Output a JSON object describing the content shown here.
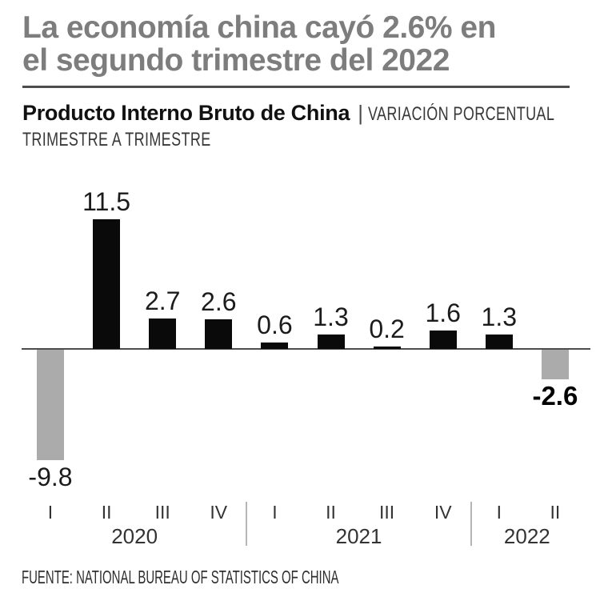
{
  "header": {
    "title_lines": [
      "La economía china cayó 2.6% en",
      "el segundo trimestre del 2022"
    ]
  },
  "subtitle": {
    "bold": "Producto Interno Bruto de China",
    "separator": "|",
    "tagline_line1": "VARIACIÓN PORCENTUAL",
    "tagline_line2": "TRIMESTRE A TRIMESTRE"
  },
  "chart_data": {
    "type": "bar",
    "title": "Producto Interno Bruto de China",
    "subtitle": "Variación porcentual trimestre a trimestre",
    "categories": [
      "I",
      "II",
      "III",
      "IV",
      "I",
      "II",
      "III",
      "IV",
      "I",
      "II"
    ],
    "year_groups": [
      {
        "label": "2020",
        "span": [
          0,
          3
        ]
      },
      {
        "label": "2021",
        "span": [
          4,
          7
        ]
      },
      {
        "label": "2022",
        "span": [
          8,
          9
        ]
      }
    ],
    "values": [
      -9.8,
      11.5,
      2.7,
      2.6,
      0.6,
      1.3,
      0.2,
      1.6,
      1.3,
      -2.6
    ],
    "highlight_index": 9,
    "colors": {
      "positive": "#0a0a0a",
      "negative": "#ababab"
    },
    "xlabel": "",
    "ylabel": "",
    "ylim": [
      -10,
      12
    ],
    "grid": false,
    "legend": false,
    "baseline": 0
  },
  "footer": {
    "source": "FUENTE: NATIONAL BUREAU OF STATISTICS OF CHINA"
  }
}
